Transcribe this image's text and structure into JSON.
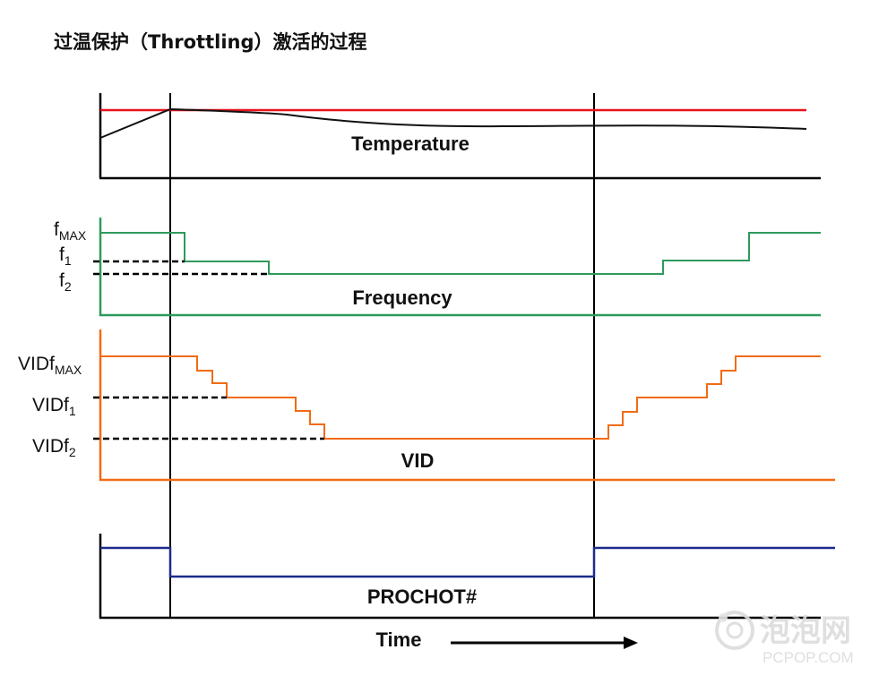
{
  "title": "过温保护（Throttling）激活的过程",
  "panels": {
    "temperature": {
      "label": "Temperature"
    },
    "frequency": {
      "label": "Frequency",
      "levels": [
        {
          "base": "f",
          "sub": "MAX"
        },
        {
          "base": "f",
          "sub": "1"
        },
        {
          "base": "f",
          "sub": "2"
        }
      ]
    },
    "vid": {
      "label": "VID",
      "levels": [
        {
          "base": "VIDf",
          "sub": "MAX"
        },
        {
          "base": "VIDf",
          "sub": "1"
        },
        {
          "base": "VIDf",
          "sub": "2"
        }
      ]
    },
    "prochot": {
      "label": "PROCHOT#"
    }
  },
  "time_label": "Time",
  "watermark": {
    "site": "泡泡网",
    "url": "PCPOP.COM"
  },
  "colors": {
    "temperature_limit": "#e8121e",
    "temperature": "#111111",
    "frequency": "#2e9a5c",
    "vid": "#f26b14",
    "prochot": "#1c2b8c",
    "axes": "#000000"
  }
}
